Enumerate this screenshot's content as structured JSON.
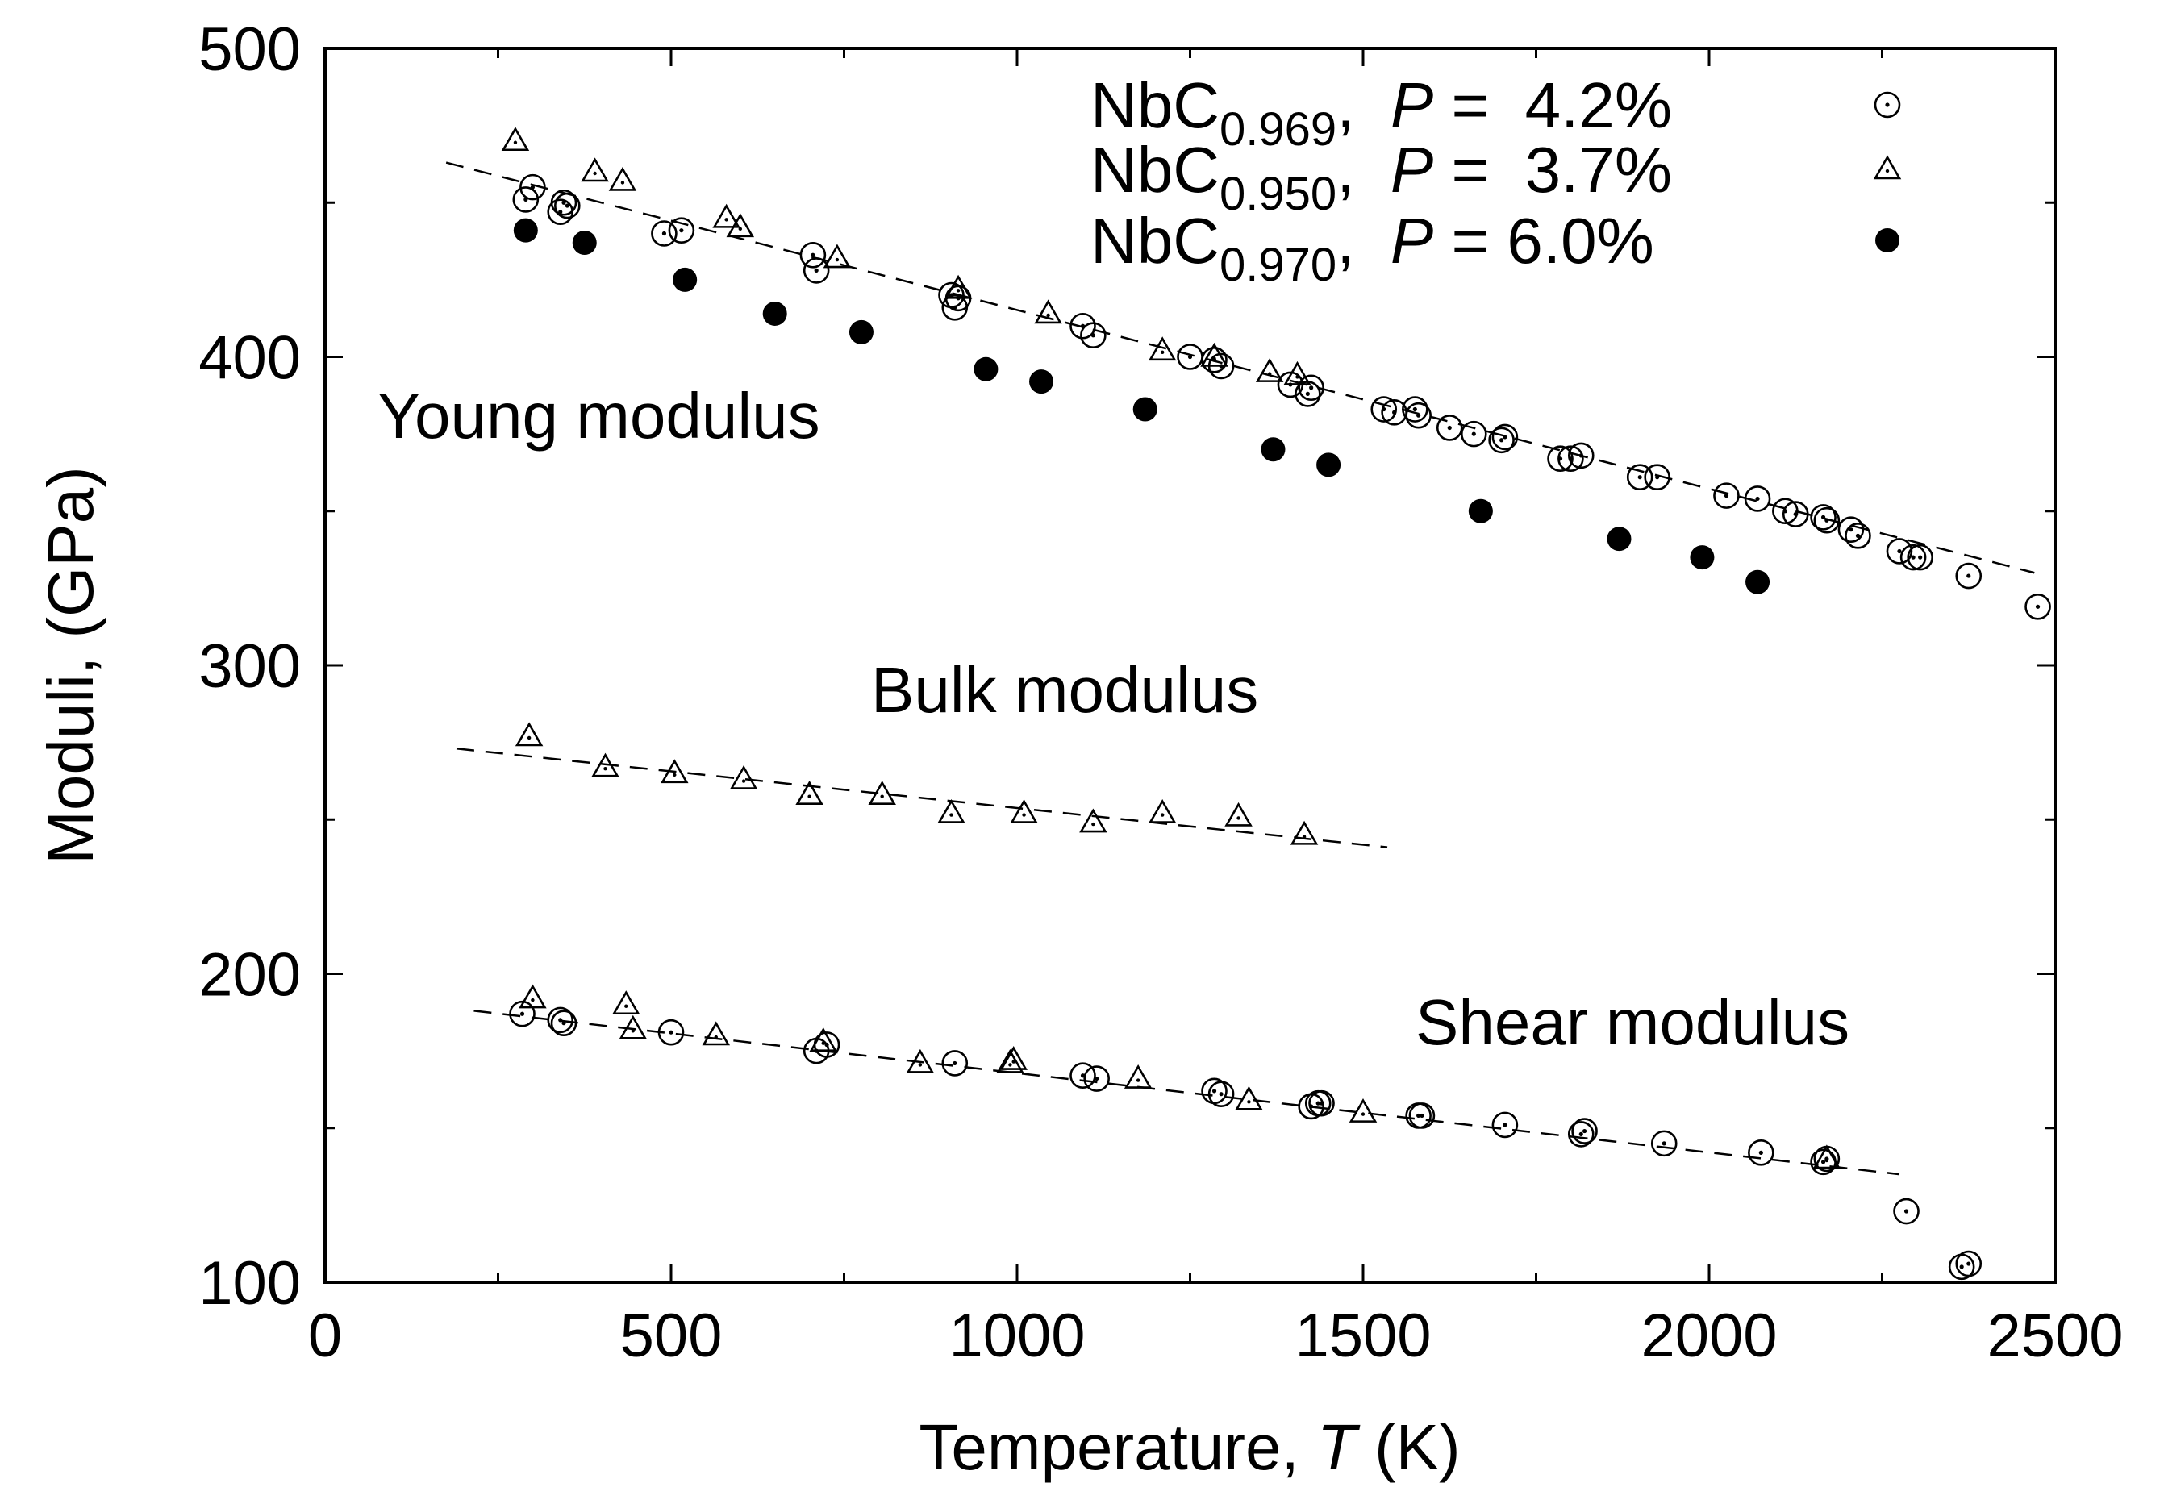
{
  "chart_data": {
    "type": "scatter",
    "title": "",
    "xlabel_prefix": "Temperature, ",
    "xlabel_var": "T",
    "xlabel_unit": " (K)",
    "ylabel": "Moduli, (GPa)",
    "xlim": [
      0,
      2500
    ],
    "ylim": [
      100,
      500
    ],
    "xticks": [
      0,
      500,
      1000,
      1500,
      2000,
      2500
    ],
    "yticks": [
      100,
      200,
      300,
      400,
      500
    ],
    "xtick_labels": [
      "0",
      "500",
      "1000",
      "1500",
      "2000",
      "2500"
    ],
    "ytick_labels": [
      "100",
      "200",
      "300",
      "400",
      "500"
    ],
    "annotations": {
      "young": "Young modulus",
      "bulk": "Bulk modulus",
      "shear": "Shear modulus"
    },
    "legend": [
      {
        "base": "NbC",
        "sub": "0.969",
        "comma": ",",
        "p": "P",
        "eq": " =  4.2%",
        "marker": "circle-dot"
      },
      {
        "base": "NbC",
        "sub": "0.950",
        "comma": ",",
        "p": "P",
        "eq": " =  3.7%",
        "marker": "triangle"
      },
      {
        "base": "NbC",
        "sub": "0.970",
        "comma": ",",
        "p": "P",
        "eq": " = 6.0%",
        "marker": "filled-circle"
      }
    ],
    "series": [
      {
        "name": "Young NbC0.969",
        "marker": "circle-dot",
        "x": [
          290,
          300,
          340,
          345,
          350,
          490,
          515,
          705,
          710,
          905,
          910,
          915,
          1095,
          1110,
          1250,
          1285,
          1295,
          1395,
          1420,
          1425,
          1530,
          1545,
          1575,
          1580,
          1625,
          1660,
          1700,
          1705,
          1785,
          1800,
          1815,
          1900,
          1925,
          2025,
          2070,
          2110,
          2125,
          2165,
          2170,
          2205,
          2215,
          2275,
          2295,
          2305,
          2375,
          2475
        ],
        "y": [
          451,
          455,
          447,
          450,
          449,
          440,
          441,
          433,
          428,
          420,
          416,
          419,
          410,
          407,
          400,
          399,
          397,
          391,
          388,
          390,
          383,
          382,
          383,
          381,
          377,
          375,
          373,
          374,
          367,
          367,
          368,
          361,
          361,
          355,
          354,
          350,
          349,
          348,
          347,
          344,
          342,
          337,
          335,
          335,
          329,
          319
        ]
      },
      {
        "name": "Young NbC0.950",
        "marker": "triangle",
        "x": [
          275,
          390,
          430,
          580,
          600,
          740,
          915,
          1045,
          1210,
          1285,
          1365,
          1405
        ],
        "y": [
          470,
          460,
          457,
          445,
          442,
          432,
          422,
          414,
          402,
          400,
          395,
          394
        ]
      },
      {
        "name": "Young NbC0.970",
        "marker": "filled-circle",
        "x": [
          290,
          375,
          520,
          650,
          775,
          955,
          1035,
          1185,
          1370,
          1450,
          1670,
          1870,
          1990,
          2070
        ],
        "y": [
          441,
          437,
          425,
          414,
          408,
          396,
          392,
          383,
          370,
          365,
          350,
          341,
          335,
          327
        ]
      },
      {
        "name": "Bulk NbC0.950",
        "marker": "triangle",
        "x": [
          295,
          405,
          505,
          605,
          700,
          805,
          905,
          1010,
          1110,
          1210,
          1320,
          1415
        ],
        "y": [
          277,
          267,
          265,
          263,
          258,
          258,
          252,
          252,
          249,
          252,
          251,
          245
        ]
      },
      {
        "name": "Shear NbC0.969",
        "marker": "circle-dot",
        "x": [
          285,
          340,
          345,
          500,
          710,
          725,
          910,
          1095,
          1115,
          1285,
          1295,
          1425,
          1435,
          1440,
          1580,
          1585,
          1705,
          1815,
          1820,
          1935,
          2075,
          2165,
          2170,
          2285,
          2365,
          2375
        ],
        "y": [
          187,
          185,
          184,
          181,
          175,
          177,
          171,
          167,
          166,
          162,
          161,
          157,
          158,
          158,
          154,
          154,
          151,
          148,
          149,
          145,
          142,
          139,
          140,
          123,
          105,
          106
        ]
      },
      {
        "name": "Shear NbC0.950",
        "marker": "triangle",
        "x": [
          300,
          435,
          445,
          565,
          720,
          860,
          990,
          995,
          1175,
          1335,
          1500,
          2170
        ],
        "y": [
          192,
          190,
          182,
          180,
          178,
          171,
          171,
          172,
          166,
          159,
          155,
          140
        ]
      }
    ],
    "fit_lines": [
      {
        "name": "Young fit",
        "x": [
          175,
          2470
        ],
        "y": [
          463,
          330
        ]
      },
      {
        "name": "Bulk fit",
        "x": [
          190,
          1535
        ],
        "y": [
          273,
          241
        ]
      },
      {
        "name": "Shear fit",
        "x": [
          215,
          2275
        ],
        "y": [
          188,
          135
        ]
      }
    ]
  }
}
